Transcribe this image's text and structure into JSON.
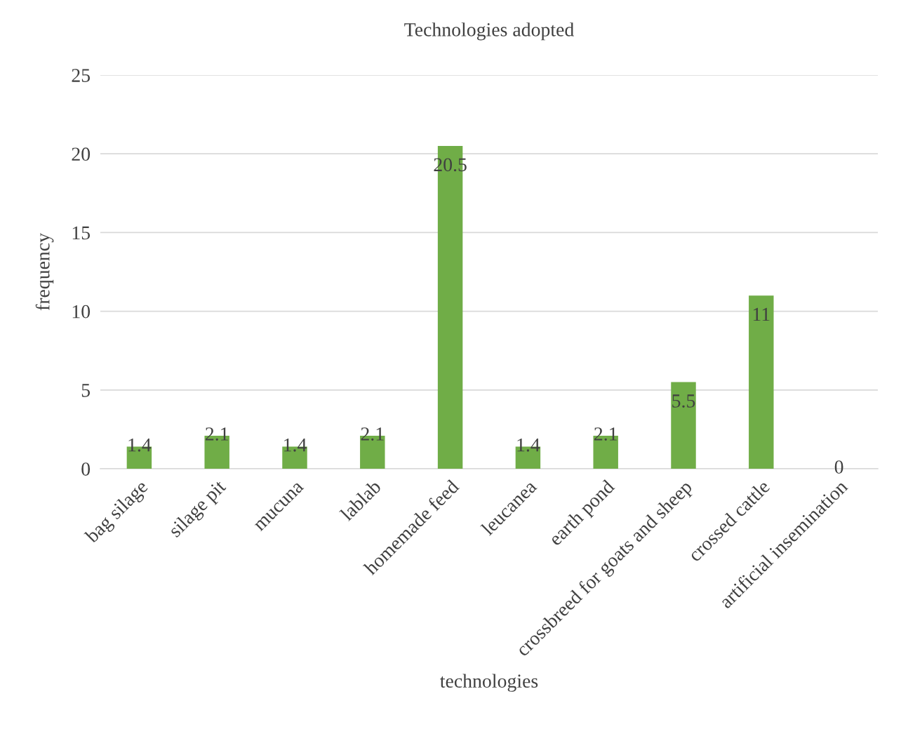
{
  "chart_data": {
    "type": "bar",
    "title": "Technologies adopted",
    "xlabel": "technologies",
    "ylabel": "frequency",
    "categories": [
      "bag silage",
      "silage pit",
      "mucuna",
      "lablab",
      "homemade feed",
      "leucanea",
      "earth pond",
      "crossbreed for goats and sheep",
      "crossed cattle",
      "artificial insemination"
    ],
    "values": [
      1.4,
      2.1,
      1.4,
      2.1,
      20.5,
      1.4,
      2.1,
      5.5,
      11,
      0
    ],
    "color": "#70ad47",
    "ylim": [
      0,
      25
    ],
    "yticks": [
      0,
      5,
      10,
      15,
      20,
      25
    ],
    "grid": "y",
    "data_labels": true
  }
}
